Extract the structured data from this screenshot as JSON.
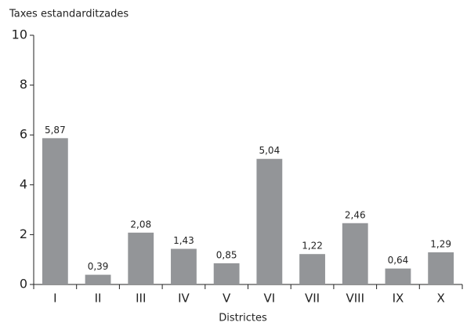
{
  "chart_data": {
    "type": "bar",
    "y_label": "Taxes estandarditzades",
    "x_label": "Districtes",
    "categories": [
      "I",
      "II",
      "III",
      "IV",
      "V",
      "VI",
      "VII",
      "VIII",
      "IX",
      "X"
    ],
    "values": [
      5.87,
      0.39,
      2.08,
      1.43,
      0.85,
      5.04,
      1.22,
      2.46,
      0.64,
      1.29
    ],
    "value_labels": [
      "5,87",
      "0,39",
      "2,08",
      "1,43",
      "0,85",
      "5,04",
      "1,22",
      "2,46",
      "0,64",
      "1,29"
    ],
    "color": "#939598",
    "ylim": [
      0,
      10
    ],
    "yticks": [
      0,
      2,
      4,
      6,
      8,
      10
    ],
    "grid": false
  }
}
